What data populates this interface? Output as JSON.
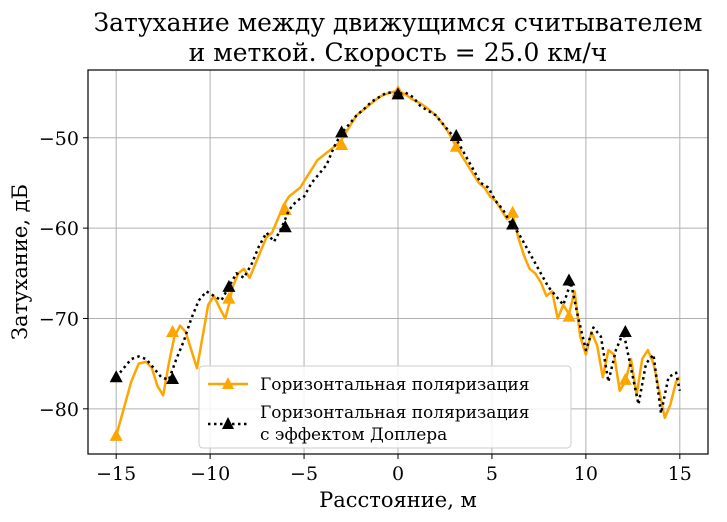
{
  "chart_data": {
    "type": "line",
    "title_lines": [
      "Затухание между движущимся считывателем",
      "и меткой. Скорость = 25.0 км/ч"
    ],
    "xlabel": "Расстояние, м",
    "ylabel": "Затухание, дБ",
    "xlim": [
      -16.5,
      16.5
    ],
    "ylim": [
      -85,
      -42.5
    ],
    "xticks": [
      -15,
      -10,
      -5,
      0,
      5,
      10,
      15
    ],
    "yticks": [
      -80,
      -70,
      -60,
      -50
    ],
    "xtick_labels": [
      "−15",
      "−10",
      "−5",
      "0",
      "5",
      "10",
      "15"
    ],
    "ytick_labels": [
      "−80",
      "−70",
      "−60",
      "−50"
    ],
    "grid": true,
    "legend_position": "lower-center",
    "series": [
      {
        "name": "Горизонтальная поляризация",
        "color": "#ffa500",
        "style": "solid",
        "marker": "triangle",
        "x": [
          -15,
          -14.6,
          -14.2,
          -13.8,
          -13.4,
          -13.1,
          -12.8,
          -12.5,
          -12.2,
          -11.9,
          -11.6,
          -11.3,
          -11.0,
          -10.7,
          -10.4,
          -10.1,
          -9.8,
          -9.5,
          -9.2,
          -9.0,
          -8.8,
          -8.5,
          -8.2,
          -7.9,
          -7.6,
          -7.3,
          -7.0,
          -6.7,
          -6.4,
          -6.1,
          -5.8,
          -5.5,
          -5.2,
          -4.9,
          -4.6,
          -4.3,
          -4.0,
          -3.7,
          -3.4,
          -3.1,
          -2.8,
          -2.5,
          -2.2,
          -1.9,
          -1.6,
          -1.3,
          -1.0,
          -0.7,
          -0.4,
          0,
          0.4,
          0.8,
          1.2,
          1.6,
          2.0,
          2.4,
          2.8,
          3.1,
          3.4,
          3.7,
          4.0,
          4.3,
          4.6,
          4.9,
          5.2,
          5.5,
          5.8,
          6.1,
          6.4,
          6.7,
          7.0,
          7.3,
          7.6,
          7.9,
          8.2,
          8.5,
          8.8,
          9.1,
          9.4,
          9.7,
          10.0,
          10.3,
          10.6,
          10.9,
          11.2,
          11.5,
          11.8,
          12.1,
          12.4,
          12.7,
          13.0,
          13.3,
          13.6,
          13.9,
          14.2,
          14.5,
          14.8,
          15.0
        ],
        "y": [
          -83.0,
          -80.0,
          -77.0,
          -75.0,
          -74.8,
          -75.5,
          -77.5,
          -78.5,
          -75.0,
          -72.0,
          -70.8,
          -71.5,
          -73.5,
          -75.5,
          -72.0,
          -68.5,
          -67.5,
          -68.8,
          -70.0,
          -68.5,
          -66.5,
          -65.0,
          -64.5,
          -65.5,
          -64.0,
          -62.5,
          -61.0,
          -60.5,
          -59.0,
          -57.5,
          -56.5,
          -56.0,
          -55.5,
          -54.5,
          -53.5,
          -52.5,
          -52.0,
          -51.5,
          -51.0,
          -50.5,
          -49.5,
          -48.5,
          -47.5,
          -47.0,
          -46.5,
          -46.0,
          -45.5,
          -45.2,
          -45.0,
          -44.8,
          -45.2,
          -45.8,
          -46.2,
          -46.8,
          -47.5,
          -48.5,
          -49.8,
          -51.0,
          -52.0,
          -53.0,
          -54.0,
          -55.0,
          -55.5,
          -56.5,
          -57.0,
          -58.0,
          -59.0,
          -58.5,
          -61.0,
          -63.0,
          -64.5,
          -65.0,
          -66.0,
          -67.5,
          -67.0,
          -70.0,
          -68.5,
          -69.5,
          -67.0,
          -72.0,
          -74.0,
          -71.5,
          -73.0,
          -76.5,
          -73.5,
          -74.0,
          -78.0,
          -77.0,
          -74.5,
          -78.5,
          -74.5,
          -73.5,
          -75.0,
          -78.0,
          -81.0,
          -79.5,
          -77.0,
          -76.5
        ],
        "marker_x": [
          -15,
          -12,
          -9,
          -6,
          -3,
          0,
          3.1,
          6.1,
          9.1,
          12.1
        ],
        "marker_y": [
          -83.0,
          -71.5,
          -67.8,
          -58.0,
          -50.8,
          -44.9,
          -51.0,
          -58.3,
          -69.8,
          -76.8
        ]
      },
      {
        "name": "Горизонтальная поляризация\nс эффектом Доплера",
        "color": "#000000",
        "style": "dotted",
        "marker": "triangle",
        "x": [
          -15,
          -14.6,
          -14.2,
          -13.8,
          -13.4,
          -13.0,
          -12.6,
          -12.2,
          -11.8,
          -11.4,
          -11.0,
          -10.6,
          -10.2,
          -9.8,
          -9.4,
          -9.0,
          -8.6,
          -8.2,
          -7.8,
          -7.4,
          -7.0,
          -6.6,
          -6.2,
          -5.8,
          -5.4,
          -5.0,
          -4.6,
          -4.2,
          -3.8,
          -3.4,
          -3.0,
          -2.6,
          -2.2,
          -1.8,
          -1.4,
          -1.0,
          -0.6,
          -0.2,
          0,
          0.4,
          0.8,
          1.2,
          1.6,
          2.0,
          2.4,
          2.8,
          3.2,
          3.6,
          4.0,
          4.4,
          4.8,
          5.2,
          5.6,
          6.0,
          6.4,
          6.8,
          7.2,
          7.6,
          8.0,
          8.4,
          8.8,
          9.2,
          9.6,
          10.0,
          10.4,
          10.8,
          11.2,
          11.6,
          12.0,
          12.4,
          12.8,
          13.2,
          13.6,
          14.0,
          14.4,
          14.8,
          15.0
        ],
        "y": [
          -76.5,
          -75.5,
          -74.5,
          -74.2,
          -74.5,
          -75.5,
          -76.5,
          -76.8,
          -74.5,
          -72.5,
          -70.0,
          -68.0,
          -67.0,
          -67.5,
          -68.0,
          -66.5,
          -65.0,
          -65.5,
          -64.0,
          -62.0,
          -60.5,
          -61.5,
          -60.0,
          -58.0,
          -57.0,
          -56.5,
          -55.0,
          -54.0,
          -53.0,
          -51.0,
          -49.5,
          -48.5,
          -47.5,
          -46.8,
          -46.0,
          -45.5,
          -45.0,
          -45.0,
          -45.2,
          -45.0,
          -45.5,
          -46.5,
          -47.0,
          -47.5,
          -48.5,
          -49.5,
          -50.5,
          -52.0,
          -53.5,
          -55.0,
          -55.5,
          -57.0,
          -58.0,
          -59.5,
          -60.5,
          -62.0,
          -63.5,
          -65.0,
          -66.5,
          -67.5,
          -68.5,
          -66.0,
          -70.0,
          -73.5,
          -71.0,
          -72.0,
          -77.0,
          -73.5,
          -71.5,
          -75.5,
          -79.5,
          -75.0,
          -74.0,
          -80.5,
          -76.5,
          -76.0,
          -78.0
        ],
        "marker_x": [
          -15,
          -12,
          -9,
          -6,
          -3,
          0,
          3.1,
          6.1,
          9.1,
          12.1
        ],
        "marker_y": [
          -76.5,
          -76.7,
          -66.5,
          -59.9,
          -49.4,
          -45.2,
          -49.8,
          -59.6,
          -65.8,
          -71.5
        ]
      }
    ]
  }
}
